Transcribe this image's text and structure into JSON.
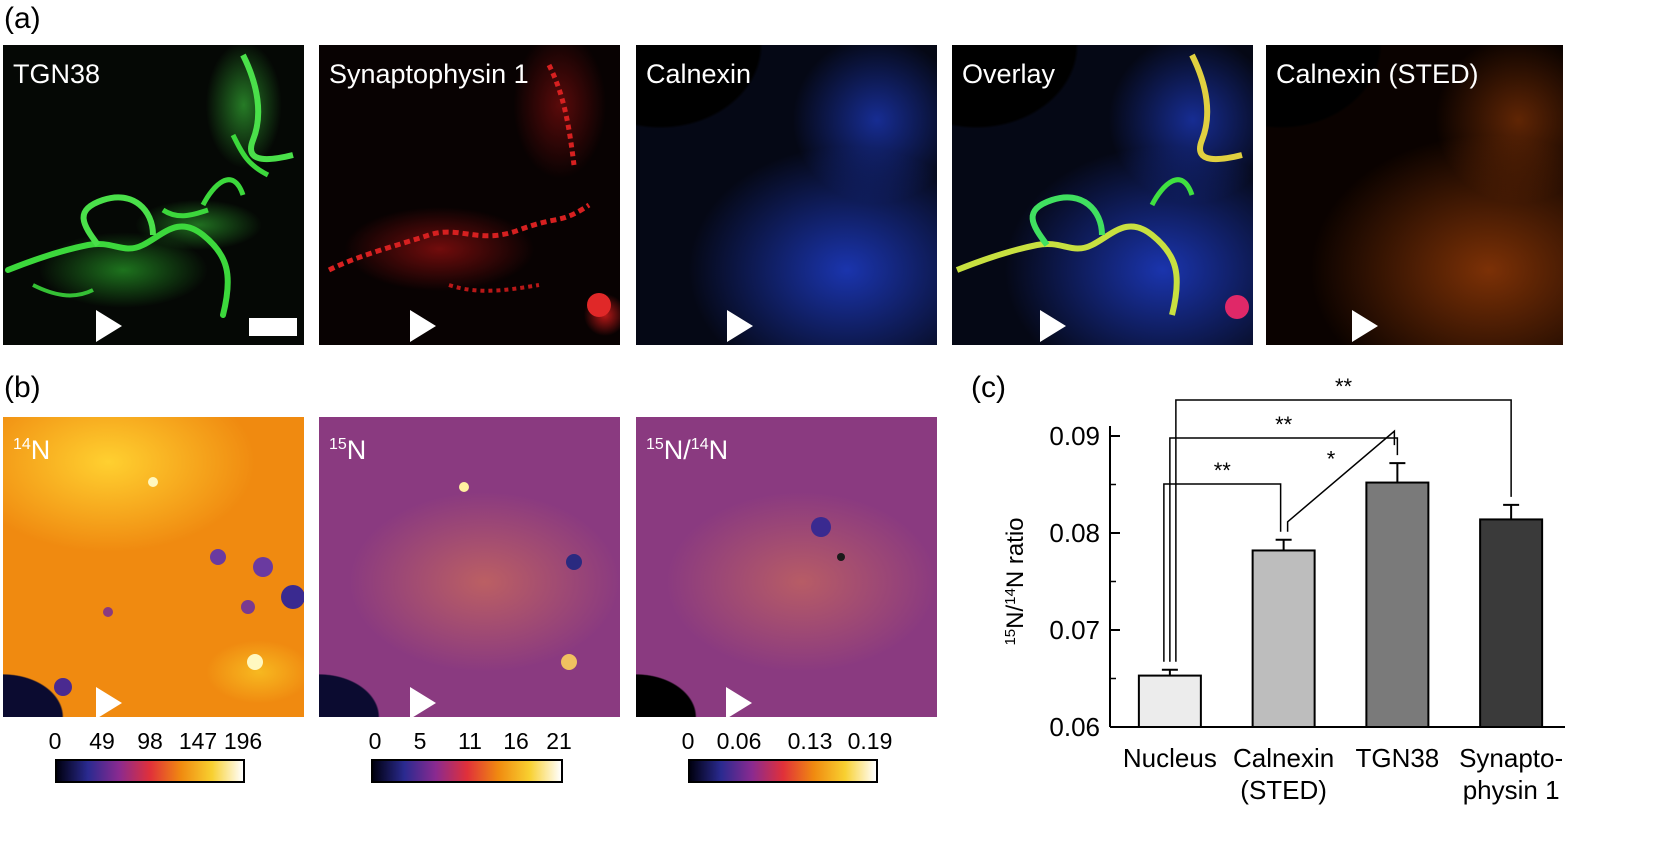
{
  "panel_a": {
    "letter": "(a)",
    "images": [
      {
        "label": "TGN38"
      },
      {
        "label": "Synaptophysin 1"
      },
      {
        "label": "Calnexin"
      },
      {
        "label": "Overlay"
      },
      {
        "label": "Calnexin (STED)"
      }
    ]
  },
  "panel_b": {
    "letter": "(b)",
    "images": [
      {
        "label_main": "N",
        "label_sup": "14",
        "colorbar_ticks": [
          "0",
          "49",
          "98",
          "147",
          "196"
        ]
      },
      {
        "label_main": "N",
        "label_sup": "15",
        "colorbar_ticks": [
          "0",
          "5",
          "11",
          "16",
          "21"
        ]
      },
      {
        "label_sup1": "15",
        "label_mid": "N/",
        "label_sup2": "14",
        "label_end": "N",
        "colorbar_ticks": [
          "0",
          "0.06",
          "0.13",
          "0.19"
        ]
      }
    ]
  },
  "panel_c": {
    "letter": "(c)"
  },
  "colors": {
    "nucleus": "#ececec",
    "calnexin": "#bdbdbd",
    "tgn38": "#7a7a7a",
    "synaptophysin": "#3a3a3a"
  },
  "chart_data": {
    "type": "bar",
    "ylabel_sup1": "15",
    "ylabel_mid": "N/",
    "ylabel_sup2": "14",
    "ylabel_end": "N ratio",
    "categories": [
      [
        "Nucleus"
      ],
      [
        "Calnexin",
        "(STED)"
      ],
      [
        "TGN38"
      ],
      [
        "Synapto-",
        "physin 1"
      ]
    ],
    "values": [
      0.0653,
      0.0782,
      0.0852,
      0.0814
    ],
    "errors": [
      0.0006,
      0.0011,
      0.002,
      0.0015
    ],
    "ylim": [
      0.06,
      0.09
    ],
    "yticks": [
      "0.06",
      "0.07",
      "0.08",
      "0.09"
    ],
    "significance": [
      {
        "from": 0,
        "to": 1,
        "label": "**"
      },
      {
        "from": 1,
        "to": 2,
        "label": "*"
      },
      {
        "from": 0,
        "to": 2,
        "label": "**"
      },
      {
        "from": 0,
        "to": 3,
        "label": "**"
      }
    ]
  }
}
